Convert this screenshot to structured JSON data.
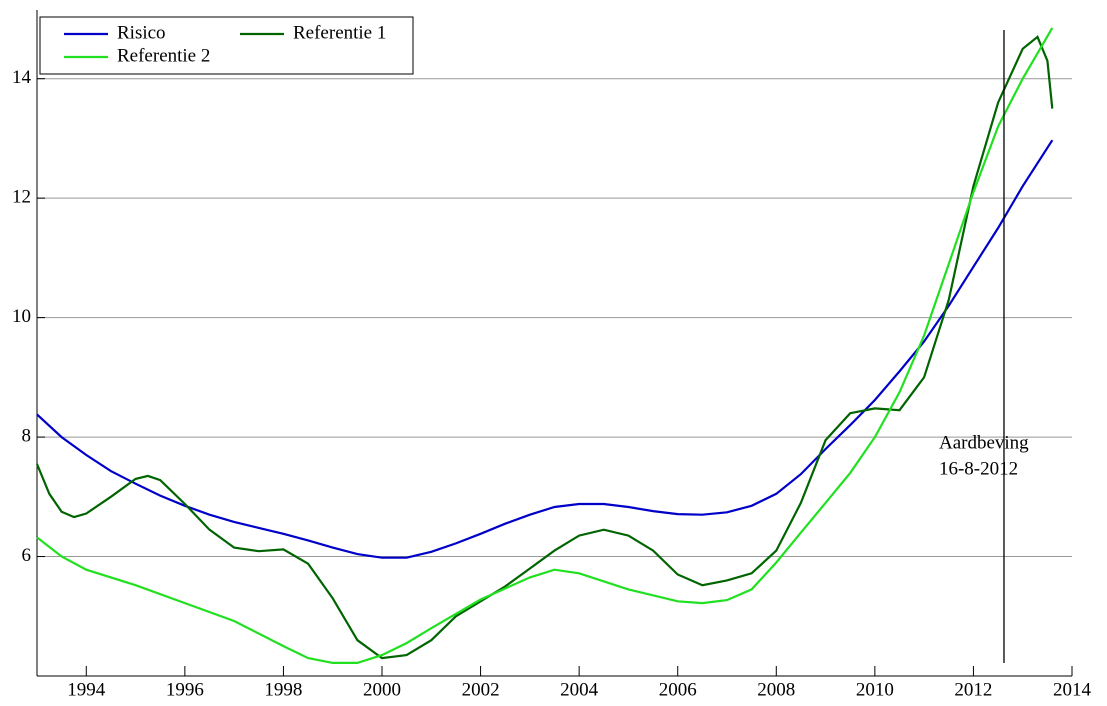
{
  "chart_data": {
    "type": "line",
    "xlim": [
      1993,
      2014
    ],
    "xticks": [
      1994,
      1996,
      1998,
      2000,
      2002,
      2004,
      2006,
      2008,
      2010,
      2012,
      2014
    ],
    "ylim": [
      4,
      15.15
    ],
    "yticks": [
      6,
      8,
      10,
      12,
      14
    ],
    "grid": true,
    "legend": "upper left",
    "series": [
      {
        "name": "Risico",
        "color": "#0000c8",
        "x": [
          1993,
          1993.5,
          1994,
          1994.5,
          1995,
          1995.5,
          1996,
          1996.5,
          1997,
          1997.5,
          1998,
          1998.5,
          1999,
          1999.5,
          2000,
          2000.5,
          2001,
          2001.5,
          2002,
          2002.5,
          2003,
          2003.5,
          2004,
          2004.5,
          2005,
          2005.5,
          2006,
          2006.5,
          2007,
          2007.5,
          2008,
          2008.5,
          2009,
          2009.5,
          2010,
          2010.5,
          2011,
          2011.5,
          2012,
          2012.5,
          2013,
          2013.6
        ],
        "values": [
          8.38,
          8.0,
          7.7,
          7.43,
          7.22,
          7.02,
          6.85,
          6.7,
          6.58,
          6.48,
          6.38,
          6.27,
          6.15,
          6.04,
          5.98,
          5.98,
          6.08,
          6.22,
          6.38,
          6.55,
          6.7,
          6.83,
          6.88,
          6.88,
          6.83,
          6.76,
          6.71,
          6.7,
          6.74,
          6.85,
          7.05,
          7.38,
          7.8,
          8.2,
          8.62,
          9.1,
          9.6,
          10.2,
          10.85,
          11.5,
          12.2,
          12.97
        ]
      },
      {
        "name": "Referentie 1",
        "color": "#006400",
        "x": [
          1993,
          1993.25,
          1993.5,
          1993.75,
          1994,
          1994.5,
          1995,
          1995.25,
          1995.5,
          1996,
          1996.5,
          1997,
          1997.5,
          1998,
          1998.5,
          1999,
          1999.5,
          2000,
          2000.5,
          2001,
          2001.5,
          2002,
          2002.5,
          2003,
          2003.5,
          2004,
          2004.5,
          2005,
          2005.5,
          2006,
          2006.5,
          2007,
          2007.5,
          2008,
          2008.5,
          2009,
          2009.5,
          2010,
          2010.5,
          2011,
          2011.5,
          2012,
          2012.5,
          2013,
          2013.3,
          2013.5,
          2013.6
        ],
        "values": [
          7.55,
          7.05,
          6.75,
          6.66,
          6.72,
          7.0,
          7.3,
          7.35,
          7.28,
          6.88,
          6.45,
          6.15,
          6.09,
          6.12,
          5.88,
          5.3,
          4.6,
          4.3,
          4.35,
          4.6,
          5.0,
          5.25,
          5.5,
          5.8,
          6.1,
          6.35,
          6.45,
          6.35,
          6.1,
          5.7,
          5.52,
          5.6,
          5.72,
          6.1,
          6.9,
          7.95,
          8.4,
          8.48,
          8.45,
          9.0,
          10.3,
          12.2,
          13.6,
          14.5,
          14.7,
          14.3,
          13.5
        ]
      },
      {
        "name": "Referentie 2",
        "color": "#20e020",
        "x": [
          1993,
          1993.5,
          1994,
          1995,
          1996,
          1997,
          1998,
          1998.5,
          1999,
          1999.5,
          2000,
          2000.5,
          2001,
          2002,
          2003,
          2003.5,
          2004,
          2005,
          2006,
          2006.5,
          2007,
          2007.5,
          2008,
          2008.5,
          2009,
          2009.5,
          2010,
          2010.5,
          2011,
          2011.5,
          2012,
          2012.5,
          2013,
          2013.6
        ],
        "values": [
          6.32,
          6.0,
          5.78,
          5.52,
          5.22,
          4.92,
          4.5,
          4.3,
          4.22,
          4.22,
          4.35,
          4.55,
          4.8,
          5.28,
          5.65,
          5.78,
          5.72,
          5.45,
          5.25,
          5.22,
          5.27,
          5.45,
          5.9,
          6.4,
          6.9,
          7.4,
          8.0,
          8.75,
          9.7,
          10.9,
          12.1,
          13.2,
          14.0,
          14.85
        ]
      }
    ],
    "event": {
      "x": 2012.62,
      "label": [
        "Aardbeving",
        "16-8-2012"
      ]
    }
  }
}
